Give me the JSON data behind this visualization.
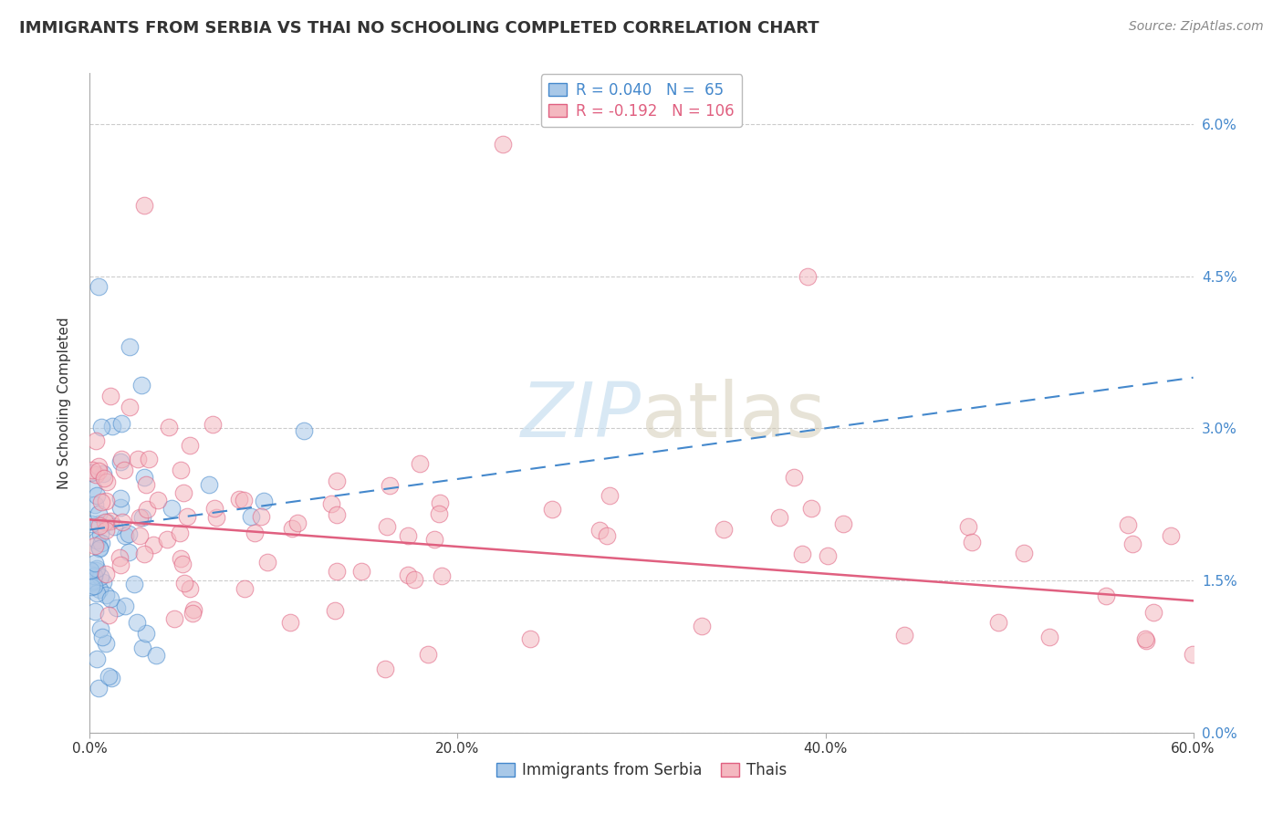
{
  "title": "IMMIGRANTS FROM SERBIA VS THAI NO SCHOOLING COMPLETED CORRELATION CHART",
  "source_text": "Source: ZipAtlas.com",
  "ylabel": "No Schooling Completed",
  "xmin": 0.0,
  "xmax": 60.0,
  "ymin": 0.0,
  "ymax": 6.5,
  "ytick_vals": [
    0.0,
    1.5,
    3.0,
    4.5,
    6.0
  ],
  "xtick_vals": [
    0.0,
    20.0,
    40.0,
    60.0
  ],
  "serbia_R": 0.04,
  "serbia_N": 65,
  "thai_R": -0.192,
  "thai_N": 106,
  "serbia_scatter_color": "#a8c8e8",
  "thai_scatter_color": "#f4b8c0",
  "serbia_line_color": "#4488cc",
  "thai_line_color": "#e06080",
  "legend_label_serbia": "Immigrants from Serbia",
  "legend_label_thai": "Thais",
  "background_color": "#ffffff",
  "grid_color": "#cccccc",
  "text_color": "#333333",
  "right_axis_color": "#4488cc",
  "watermark_color": "#c8dff0",
  "title_fontsize": 13,
  "source_fontsize": 10,
  "tick_fontsize": 11,
  "ylabel_fontsize": 11,
  "legend_fontsize": 12,
  "watermark_fontsize": 60
}
